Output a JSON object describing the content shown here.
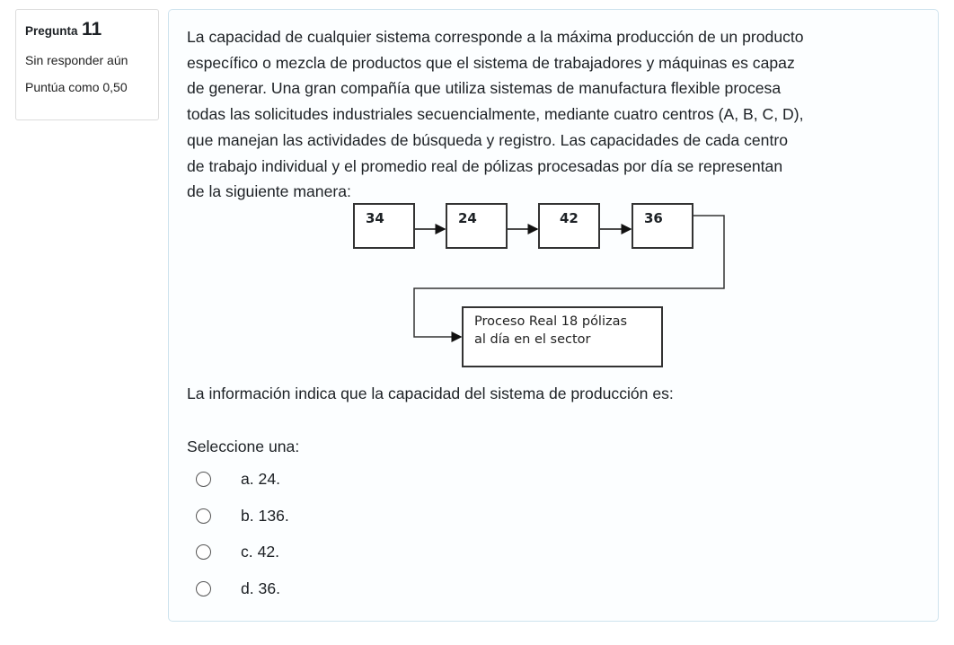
{
  "info": {
    "label": "Pregunta",
    "number": "11",
    "status": "Sin responder aún",
    "score": "Puntúa como 0,50"
  },
  "question": {
    "lines": [
      "La capacidad de cualquier sistema corresponde a la máxima producción de un producto",
      "específico o mezcla de productos que el sistema de trabajadores y máquinas es capaz",
      "de generar. Una gran compañía que utiliza sistemas de manufactura flexible procesa",
      "todas las solicitudes industriales secuencialmente, mediante cuatro centros (A, B, C, D),",
      "que manejan las actividades de búsqueda y registro. Las capacidades de cada centro",
      "de trabajo individual y el promedio real de pólizas procesadas por día se representan",
      "de la siguiente manera:"
    ],
    "diagram": {
      "centers": [
        "34",
        "24",
        "42",
        "36"
      ],
      "process_line1": "Proceso Real 18 pólizas",
      "process_line2": "al día en el sector"
    },
    "prompt": "La información indica que la capacidad del sistema de producción es:",
    "select_label": "Seleccione una:",
    "options": [
      "a. 24.",
      "b. 136.",
      "c. 42.",
      "d. 36."
    ]
  }
}
